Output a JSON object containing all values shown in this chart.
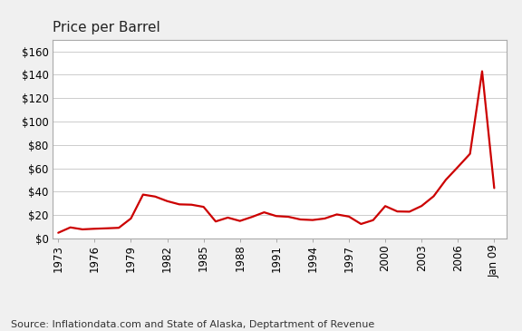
{
  "title": "Price per Barrel",
  "source_text": "Source: Inflationdata.com and State of Alaska, Deptartment of Revenue",
  "line_color": "#cc0000",
  "background_color": "#f0f0f0",
  "plot_bg_color": "#ffffff",
  "grid_color": "#cccccc",
  "border_color": "#aaaaaa",
  "title_fontsize": 11,
  "source_fontsize": 8,
  "ylim": [
    0,
    170
  ],
  "yticks": [
    0,
    20,
    40,
    60,
    80,
    100,
    120,
    140,
    160
  ],
  "ytick_labels": [
    "$0",
    "$20",
    "$40",
    "$60",
    "$80",
    "$100",
    "$120",
    "$140",
    "$160"
  ],
  "xtick_labels": [
    "1973",
    "1976",
    "1979",
    "1982",
    "1985",
    "1988",
    "1991",
    "1994",
    "1997",
    "2000",
    "2003",
    "2006",
    "Jan 09"
  ],
  "xtick_positions": [
    1973,
    1976,
    1979,
    1982,
    1985,
    1988,
    1991,
    1994,
    1997,
    2000,
    2003,
    2006,
    2009
  ],
  "xlim": [
    1972.5,
    2010
  ],
  "years": [
    1973,
    1974,
    1975,
    1976,
    1977,
    1978,
    1979,
    1980,
    1981,
    1982,
    1983,
    1984,
    1985,
    1986,
    1987,
    1988,
    1989,
    1990,
    1991,
    1992,
    1993,
    1994,
    1995,
    1996,
    1997,
    1998,
    1999,
    2000,
    2001,
    2002,
    2003,
    2004,
    2005,
    2006,
    2007,
    2008,
    2009
  ],
  "prices": [
    4.75,
    9.35,
    7.67,
    8.19,
    8.57,
    9.0,
    17.0,
    37.42,
    35.75,
    31.83,
    29.08,
    28.78,
    26.92,
    14.43,
    17.73,
    14.87,
    18.33,
    22.26,
    19.06,
    18.43,
    16.14,
    15.66,
    16.96,
    20.46,
    18.64,
    12.28,
    15.56,
    27.6,
    23.0,
    22.81,
    27.69,
    36.05,
    50.04,
    61.08,
    72.34,
    143.0,
    43.0
  ],
  "linewidth": 1.6
}
